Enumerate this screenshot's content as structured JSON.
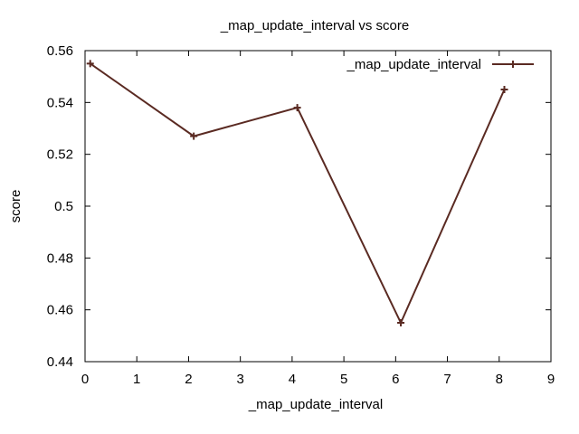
{
  "chart_data": {
    "type": "line",
    "title": "_map_update_interval vs score",
    "xlabel": "_map_update_interval",
    "ylabel": "score",
    "xlim": [
      0,
      9
    ],
    "ylim": [
      0.44,
      0.56
    ],
    "x_ticks": [
      "0",
      "1",
      "2",
      "3",
      "4",
      "5",
      "6",
      "7",
      "8",
      "9"
    ],
    "y_ticks": [
      "0.44",
      "0.46",
      "0.48",
      "0.5",
      "0.52",
      "0.54",
      "0.56"
    ],
    "grid": false,
    "legend_position": "top-right",
    "series": [
      {
        "name": "_map_update_interval",
        "color": "#5a2a22",
        "marker": "plus",
        "x": [
          0.1,
          2.1,
          4.1,
          6.1,
          8.1
        ],
        "y": [
          0.555,
          0.527,
          0.538,
          0.455,
          0.545
        ]
      }
    ]
  }
}
